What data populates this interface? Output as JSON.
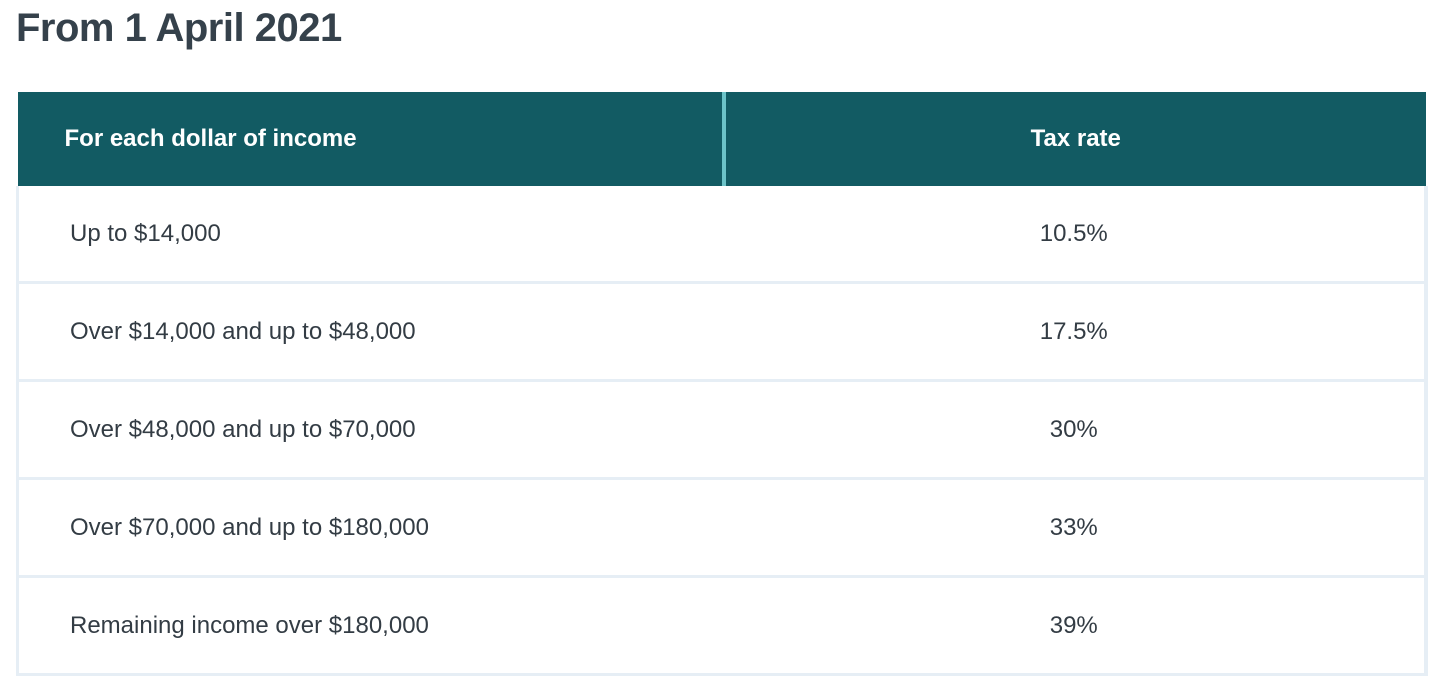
{
  "heading": "From 1 April 2021",
  "table": {
    "headers": [
      "For each dollar of income",
      "Tax rate"
    ],
    "rows": [
      {
        "income": "Up to $14,000",
        "rate": "10.5%"
      },
      {
        "income": "Over $14,000 and up to $48,000",
        "rate": "17.5%"
      },
      {
        "income": "Over $48,000 and up to $70,000",
        "rate": "30%"
      },
      {
        "income": "Over $70,000 and up to $180,000",
        "rate": "33%"
      },
      {
        "income": "Remaining income over $180,000",
        "rate": "39%"
      }
    ]
  },
  "colors": {
    "header_bg": "#125b63",
    "header_divider": "#6cc3c8",
    "row_border": "#e6eef5"
  }
}
